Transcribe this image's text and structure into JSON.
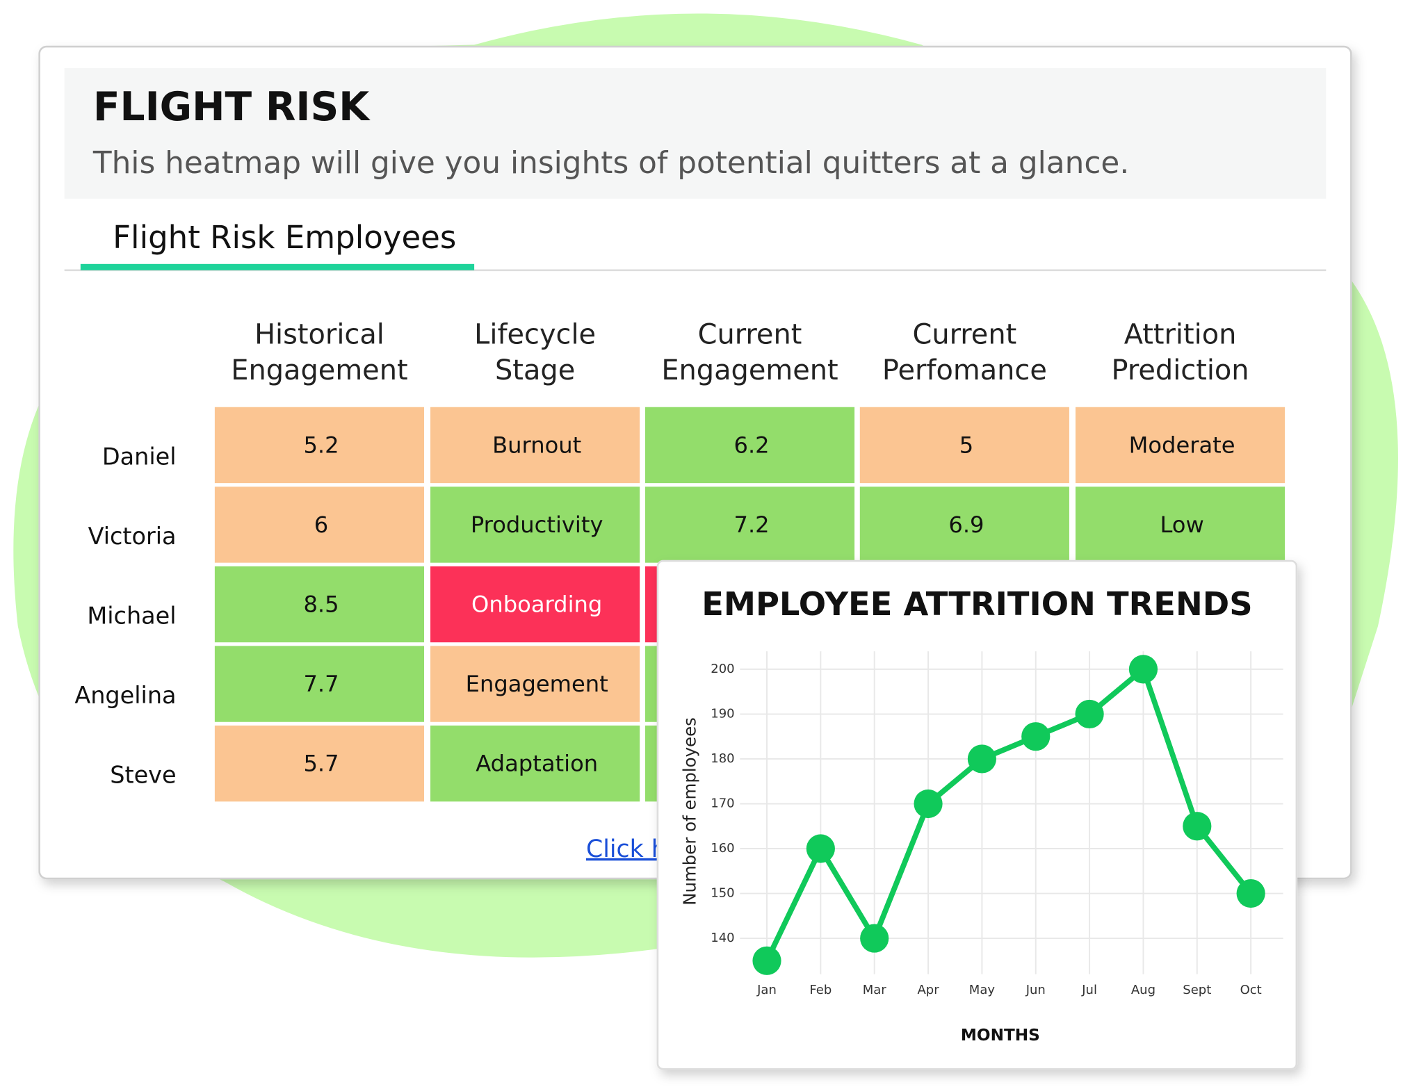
{
  "header": {
    "title": "FLIGHT RISK",
    "subtitle": "This heatmap will give you insights of potential quitters at a glance."
  },
  "tab": "Flight Risk Employees",
  "table": {
    "columns": [
      [
        "Historical",
        "Engagement"
      ],
      [
        "Lifecycle",
        "Stage"
      ],
      [
        "Current",
        "Engagement"
      ],
      [
        "Current",
        "Perfomance"
      ],
      [
        "Attrition",
        "Prediction"
      ]
    ],
    "rows": [
      {
        "name": "Daniel",
        "cells": [
          {
            "text": "5.2",
            "color": "#fbc592"
          },
          {
            "text": "Burnout",
            "color": "#fbc592"
          },
          {
            "text": "6.2",
            "color": "#93dd6b"
          },
          {
            "text": "5",
            "color": "#fbc592"
          },
          {
            "text": "Moderate",
            "color": "#fbc592"
          }
        ]
      },
      {
        "name": "Victoria",
        "cells": [
          {
            "text": "6",
            "color": "#fbc592"
          },
          {
            "text": "Productivity",
            "color": "#93dd6b"
          },
          {
            "text": "7.2",
            "color": "#93dd6b"
          },
          {
            "text": "6.9",
            "color": "#93dd6b"
          },
          {
            "text": "Low",
            "color": "#93dd6b"
          }
        ]
      },
      {
        "name": "Michael",
        "cells": [
          {
            "text": "8.5",
            "color": "#93dd6b"
          },
          {
            "text": "Onboarding",
            "color": "#fc3158"
          },
          {
            "color": "#fc3158"
          }
        ]
      },
      {
        "name": "Angelina",
        "cells": [
          {
            "text": "7.7",
            "color": "#93dd6b"
          },
          {
            "text": "Engagement",
            "color": "#fbc592"
          },
          {
            "color": "#93dd6b"
          }
        ]
      },
      {
        "name": "Steve",
        "cells": [
          {
            "text": "5.7",
            "color": "#fbc592"
          },
          {
            "text": "Adaptation",
            "color": "#93dd6b"
          },
          {
            "color": "#93dd6b"
          }
        ]
      }
    ]
  },
  "link": "Click h",
  "chart_data": {
    "type": "line",
    "title": "EMPLOYEE ATTRITION TRENDS",
    "x_label": "MONTHS",
    "y_label": "Number of employees",
    "categories": [
      "Jan",
      "Feb",
      "Mar",
      "Apr",
      "May",
      "Jun",
      "Jul",
      "Aug",
      "Sept",
      "Oct"
    ],
    "values": [
      135,
      160,
      140,
      170,
      180,
      185,
      190,
      200,
      165,
      150
    ],
    "color": "#10c95a",
    "ylim": [
      132,
      204
    ],
    "yticks": [
      140,
      150,
      160,
      170,
      180,
      190,
      200
    ],
    "grid": true
  }
}
